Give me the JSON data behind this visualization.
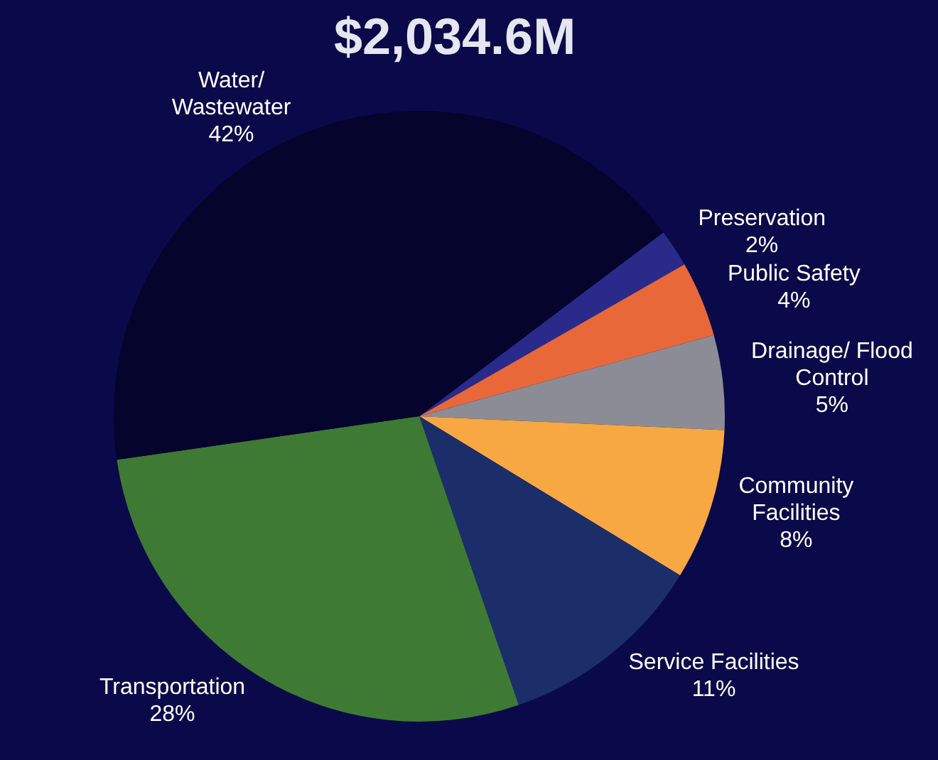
{
  "chart_data": {
    "type": "pie",
    "title": "$2,034.6M",
    "categories": [
      "Preservation",
      "Public Safety",
      "Drainage/ Flood Control",
      "Community Facilities",
      "Service Facilities",
      "Transportation",
      "Water/ Wastewater"
    ],
    "values": [
      2,
      4,
      5,
      8,
      11,
      28,
      42
    ],
    "value_labels": [
      "2%",
      "4%",
      "5%",
      "8%",
      "11%",
      "28%",
      "42%"
    ],
    "colors": [
      "#2a2a8a",
      "#e8683a",
      "#8c8c96",
      "#f7a842",
      "#1c2e6a",
      "#3e7a34",
      "#04042c"
    ],
    "legend": false
  }
}
